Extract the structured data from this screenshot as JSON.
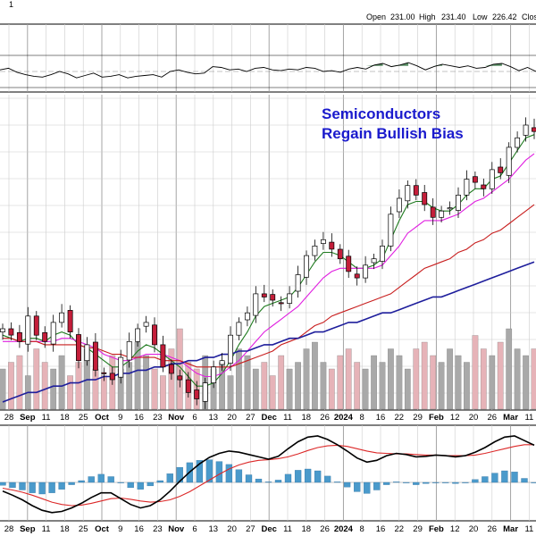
{
  "ohlc": {
    "open_label": "Open",
    "open": "231.00",
    "high_label": "High",
    "high": "231.40",
    "low_label": "Low",
    "low": "226.42",
    "close_label": "Clos"
  },
  "annotation": {
    "line1": "Semiconductors",
    "line2": "Regain Bullish Bias"
  },
  "x_axis_labels": [
    "28",
    "Sep",
    "11",
    "18",
    "25",
    "Oct",
    "9",
    "16",
    "23",
    "Nov",
    "6",
    "13",
    "20",
    "27",
    "Dec",
    "11",
    "18",
    "26",
    "2024",
    "8",
    "16",
    "22",
    "29",
    "Feb",
    "12",
    "20",
    "26",
    "Mar",
    "11"
  ],
  "bold_x_labels": [
    "Sep",
    "Oct",
    "Nov",
    "Dec",
    "2024",
    "Feb",
    "Mar"
  ],
  "colors": {
    "up_candle": "#ffffff",
    "down_candle": "#c41e3a",
    "candle_outline": "#000000",
    "ma_short": "#1e7a1e",
    "ma_mid": "#e020e0",
    "ma_long": "#c81e1e",
    "ma_200": "#1e1e9c",
    "volume_up": "#a9a9a9",
    "volume_down": "#e6b3b8",
    "rsi_line": "#000000",
    "rsi_fill": "#3d7a4a",
    "macd_line": "#000000",
    "signal_line": "#dc2828",
    "histogram": "#4a9acb",
    "grid": "#cccccc",
    "annotation": "#1a1acd"
  },
  "chart_data": {
    "type": "line",
    "price": {
      "series": [
        {
          "values": [
            188,
            186,
            184,
            192,
            186,
            184,
            190,
            193,
            187,
            178,
            183,
            175,
            174,
            172,
            179,
            184,
            188,
            190,
            183,
            176,
            174,
            172,
            168,
            166,
            171,
            176,
            178,
            186,
            190,
            193,
            199,
            198,
            197,
            196,
            199,
            205,
            211,
            214,
            216,
            213,
            210,
            206,
            204,
            208,
            210,
            214,
            224,
            229,
            233,
            230,
            227,
            223,
            225,
            226,
            230,
            235,
            234,
            232,
            238,
            237,
            245,
            248,
            252,
            250
          ]
        },
        {
          "values": [
            186,
            185,
            184,
            185,
            185,
            184,
            186,
            187,
            186,
            183,
            182,
            180,
            178,
            176,
            176,
            178,
            181,
            183,
            182,
            180,
            178,
            176,
            173,
            170,
            170,
            171,
            174,
            178,
            183,
            187,
            192,
            195,
            196,
            197,
            198,
            201,
            205,
            209,
            212,
            212,
            211,
            209,
            207,
            207,
            208,
            210,
            216,
            222,
            227,
            228,
            228,
            226,
            225,
            225,
            227,
            230,
            232,
            232,
            235,
            236,
            240,
            244,
            248,
            249
          ]
        },
        {
          "values": [
            184,
            184,
            184,
            184,
            184,
            184,
            184,
            185,
            185,
            184,
            183,
            182,
            180,
            179,
            178,
            178,
            179,
            180,
            180,
            180,
            179,
            178,
            176,
            174,
            173,
            173,
            174,
            176,
            178,
            181,
            184,
            187,
            189,
            191,
            193,
            195,
            198,
            201,
            204,
            206,
            207,
            207,
            207,
            207,
            207,
            208,
            211,
            214,
            218,
            220,
            222,
            222,
            222,
            223,
            224,
            226,
            228,
            229,
            231,
            233,
            235,
            238,
            241,
            243
          ]
        },
        {
          "values": [
            185,
            185,
            184,
            184,
            184,
            183,
            183,
            183,
            183,
            183,
            182,
            182,
            181,
            180,
            180,
            179,
            179,
            179,
            179,
            178,
            178,
            178,
            177,
            176,
            176,
            176,
            176,
            176,
            177,
            178,
            179,
            180,
            181,
            183,
            184,
            185,
            187,
            189,
            190,
            192,
            193,
            194,
            195,
            196,
            197,
            198,
            199,
            201,
            203,
            205,
            207,
            208,
            209,
            210,
            212,
            213,
            215,
            216,
            218,
            219,
            221,
            223,
            225,
            227
          ]
        },
        {
          "values": [
            165,
            166,
            167,
            168,
            168,
            169,
            170,
            170,
            171,
            171,
            172,
            172,
            173,
            173,
            174,
            174,
            175,
            175,
            176,
            176,
            177,
            177,
            178,
            178,
            179,
            179,
            180,
            180,
            181,
            181,
            182,
            183,
            183,
            184,
            185,
            185,
            186,
            187,
            187,
            188,
            189,
            190,
            190,
            191,
            192,
            193,
            193,
            194,
            195,
            196,
            197,
            198,
            198,
            199,
            200,
            201,
            202,
            203,
            204,
            205,
            206,
            207,
            208,
            209
          ]
        }
      ],
      "annotation": [
        "Semiconductors",
        "Regain Bullish Bias"
      ]
    },
    "volume": {
      "values": [
        6,
        7,
        8,
        5,
        9,
        7,
        6,
        8,
        5,
        7,
        9,
        6,
        5,
        8,
        6,
        7,
        10,
        8,
        6,
        5,
        9,
        12,
        7,
        6,
        8,
        6,
        7,
        5,
        9,
        8,
        6,
        7,
        5,
        8,
        6,
        7,
        9,
        10,
        7,
        6,
        8,
        9,
        7,
        6,
        8,
        7,
        9,
        8,
        6,
        9,
        10,
        8,
        7,
        9,
        8,
        7,
        11,
        9,
        8,
        10,
        12,
        9,
        8,
        9
      ]
    },
    "rsi": {
      "values": [
        52,
        54,
        49,
        46,
        44,
        43,
        46,
        50,
        47,
        42,
        45,
        48,
        43,
        44,
        46,
        42,
        44,
        45,
        46,
        43,
        50,
        52,
        49,
        47,
        48,
        56,
        55,
        52,
        53,
        50,
        54,
        55,
        52,
        51,
        53,
        52,
        55,
        54,
        50,
        51,
        49,
        53,
        55,
        53,
        58,
        60,
        56,
        58,
        61,
        57,
        52,
        56,
        59,
        57,
        55,
        57,
        54,
        55,
        59,
        60,
        56,
        51,
        55,
        50
      ]
    },
    "macd": {
      "series": [
        {
          "values": [
            -1.5,
            -2.2,
            -3.0,
            -4.0,
            -4.8,
            -5.2,
            -5.0,
            -4.4,
            -3.6,
            -2.6,
            -1.8,
            -1.8,
            -2.8,
            -3.8,
            -4.4,
            -4.0,
            -3.0,
            -1.5,
            0.2,
            1.8,
            3.2,
            4.3,
            5.0,
            5.4,
            5.2,
            4.8,
            4.4,
            4.0,
            4.5,
            5.8,
            7.0,
            7.8,
            8.0,
            7.4,
            6.5,
            5.4,
            4.2,
            3.5,
            3.8,
            4.6,
            5.0,
            4.8,
            4.4,
            4.5,
            4.7,
            4.6,
            4.4,
            4.6,
            5.2,
            6.0,
            7.0,
            7.8,
            8.0,
            7.2,
            6.4
          ]
        },
        {
          "values": [
            -1.0,
            -1.3,
            -1.7,
            -2.2,
            -2.8,
            -3.4,
            -3.8,
            -4.0,
            -3.9,
            -3.6,
            -3.2,
            -2.8,
            -2.7,
            -2.9,
            -3.2,
            -3.4,
            -3.3,
            -3.0,
            -2.4,
            -1.6,
            -0.6,
            0.4,
            1.4,
            2.3,
            3.0,
            3.5,
            3.8,
            3.9,
            4.1,
            4.4,
            4.9,
            5.5,
            6.0,
            6.3,
            6.4,
            6.2,
            5.8,
            5.4,
            5.1,
            5.0,
            4.9,
            4.9,
            4.8,
            4.7,
            4.7,
            4.6,
            4.6,
            4.6,
            4.7,
            5.0,
            5.4,
            5.8,
            6.2,
            6.5,
            6.5
          ]
        }
      ],
      "histogram": [
        -0.5,
        -0.9,
        -1.3,
        -1.8,
        -2.0,
        -1.8,
        -1.2,
        -0.4,
        0.3,
        1.0,
        1.4,
        1.0,
        -0.1,
        -0.9,
        -1.2,
        -0.6,
        0.3,
        1.5,
        2.6,
        3.4,
        3.8,
        3.9,
        3.6,
        3.1,
        2.2,
        1.3,
        0.6,
        0.1,
        0.4,
        1.4,
        2.1,
        2.3,
        2.0,
        1.1,
        0.1,
        -0.8,
        -1.6,
        -1.9,
        -1.3,
        -0.4,
        0.1,
        -0.1,
        -0.4,
        -0.2,
        0.0,
        0.0,
        -0.2,
        0.0,
        0.5,
        1.0,
        1.6,
        2.0,
        1.8,
        0.7,
        -0.1
      ]
    }
  }
}
